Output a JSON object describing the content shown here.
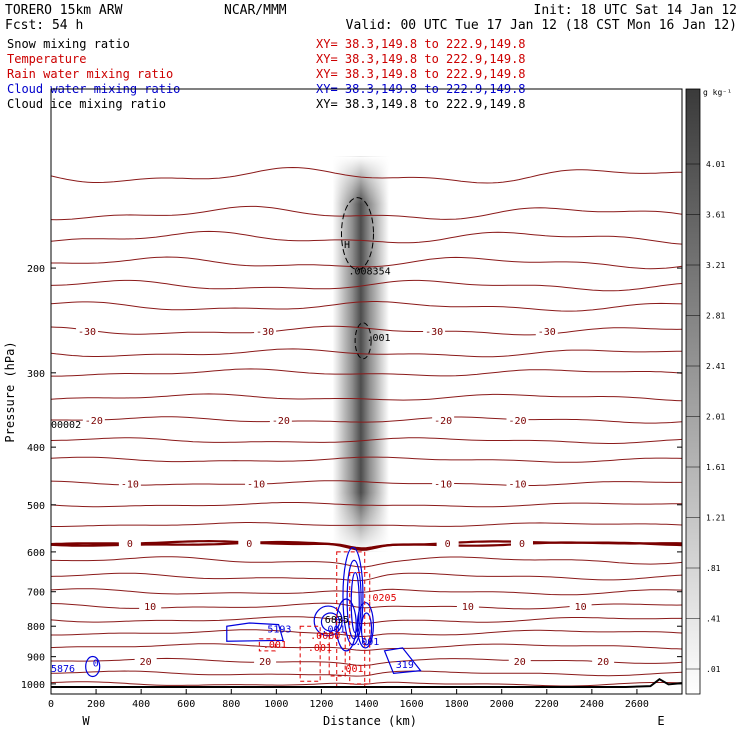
{
  "header": {
    "model": "TORERO  15km ARW",
    "org": "NCAR/MMM",
    "init": "Init: 18 UTC Sat 14 Jan 12",
    "fcst": "Fcst:   54 h",
    "valid": "Valid: 00 UTC Tue 17 Jan 12 (18 CST Mon 16 Jan 12)"
  },
  "fields": [
    {
      "name": "Snow mixing ratio",
      "xy": "XY=  38.3,149.8 to 222.9,149.8",
      "color": "#000000"
    },
    {
      "name": "Temperature",
      "xy": "XY=  38.3,149.8 to 222.9,149.8",
      "color": "#cc0000"
    },
    {
      "name": "Rain water mixing ratio",
      "xy": "XY=  38.3,149.8 to 222.9,149.8",
      "color": "#cc0000"
    },
    {
      "name": "Cloud water mixing ratio",
      "xy": "XY=  38.3,149.8 to 222.9,149.8",
      "color": "#0000cc"
    },
    {
      "name": "Cloud ice mixing ratio",
      "xy": "XY=  38.3,149.8 to 222.9,149.8",
      "color": "#000000"
    }
  ],
  "colors": {
    "temperature": "#8b1a1a",
    "freezing": "#7a0000",
    "rain": "#e00000",
    "cloud_water": "#0000dd",
    "ice": "#000000",
    "terrain": "#000000",
    "snow_shade": "#303030"
  },
  "chart_data": {
    "type": "contour-cross-section",
    "xlabel": "Distance (km)",
    "ylabel": "Pressure (hPa)",
    "xlim": [
      0,
      2800
    ],
    "ylim": [
      100,
      1040
    ],
    "y_log_scale": true,
    "x_ticks": [
      0,
      200,
      400,
      600,
      800,
      1000,
      1200,
      1400,
      1600,
      1800,
      2000,
      2200,
      2400,
      2600
    ],
    "y_ticks": [
      200,
      300,
      400,
      500,
      600,
      700,
      800,
      900,
      1000
    ],
    "x_end_labels": {
      "left": "W",
      "right": "E"
    },
    "colorbar": {
      "units": "g kg⁻¹",
      "labels": [
        "4.01",
        "3.61",
        "3.21",
        "2.81",
        "2.41",
        "2.01",
        "1.61",
        "1.21",
        ".81",
        ".41",
        ".01"
      ],
      "values": [
        4.01,
        3.61,
        3.21,
        2.81,
        2.41,
        2.01,
        1.61,
        1.21,
        0.81,
        0.41,
        0.01
      ]
    },
    "temperature_isotherms": [
      {
        "label": "-30",
        "level": 255,
        "label_positions": [
          160,
          950,
          1700,
          2200
        ],
        "bump": 0
      },
      {
        "label": "-20",
        "level": 360,
        "label_positions": [
          190,
          1020,
          1740,
          2070
        ],
        "bump": 8
      },
      {
        "label": "-10",
        "level": 460,
        "label_positions": [
          350,
          910,
          1740,
          2070
        ],
        "bump": 0
      },
      {
        "label": "0",
        "level": 580,
        "label_positions": [
          350,
          880,
          1760,
          2090
        ],
        "bump": 18
      },
      {
        "label": "10",
        "level": 740,
        "label_positions": [
          440,
          1850,
          2350
        ],
        "bump": 10
      },
      {
        "label": "20",
        "level": 915,
        "label_positions": [
          420,
          950,
          2080,
          2450
        ],
        "bump": 6
      }
    ],
    "freezing_level": 582,
    "snow_column": {
      "x": [
        1250,
        1500
      ],
      "p_top": 130,
      "p_bottom": 600,
      "max": 4.01
    },
    "ice_max": {
      "label": ".008354",
      "x": 1320,
      "p": 205
    },
    "ice_contour_label": ".001",
    "cloud_water_max": {
      "label": "6835",
      "x": 1215,
      "p": 790
    },
    "cloud_water_cells": [
      {
        "label": "5193",
        "x": 960,
        "p": 820
      },
      {
        "label": "319",
        "x": 1530,
        "p": 940
      },
      {
        "label": "0",
        "x": 185,
        "p": 935
      }
    ],
    "rain_labels": [
      ".0205",
      ".0000",
      ".001",
      ".001",
      ".001"
    ],
    "cloud_labels": [
      ".001",
      ".001"
    ],
    "edge_labels": {
      "left_upper": "00002",
      "left_lower": "5876"
    },
    "terrain_pressure": 1012
  }
}
